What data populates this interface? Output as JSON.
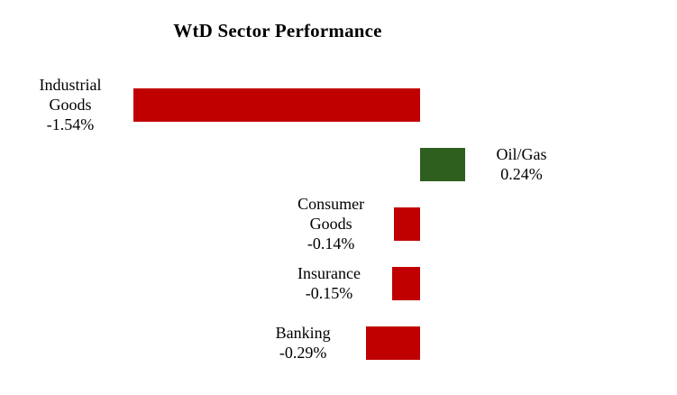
{
  "title": "WtD Sector Performance",
  "chart_data": {
    "type": "bar",
    "orientation": "horizontal",
    "title": "WtD Sector Performance",
    "xlabel": "",
    "ylabel": "",
    "value_format": "percent",
    "xlim": [
      -1.8,
      0.6
    ],
    "legend": false,
    "gridlines": false,
    "axes_visible": false,
    "categories": [
      "Industrial Goods",
      "Oil/Gas",
      "Consumer Goods",
      "Insurance",
      "Banking"
    ],
    "values": [
      -1.54,
      0.24,
      -0.14,
      -0.15,
      -0.29
    ],
    "colors": {
      "negative": "#c00000",
      "positive": "#2f5f1f"
    },
    "points": [
      {
        "category": "Industrial Goods",
        "name_lines": [
          "Industrial",
          "Goods"
        ],
        "value": -1.54,
        "value_label": "-1.54%",
        "color": "#c00000"
      },
      {
        "category": "Oil/Gas",
        "name_lines": [
          "Oil/Gas"
        ],
        "value": 0.24,
        "value_label": "0.24%",
        "color": "#2f5f1f"
      },
      {
        "category": "Consumer Goods",
        "name_lines": [
          "Consumer",
          "Goods"
        ],
        "value": -0.14,
        "value_label": "-0.14%",
        "color": "#c00000"
      },
      {
        "category": "Insurance",
        "name_lines": [
          "Insurance"
        ],
        "value": -0.15,
        "value_label": "-0.15%",
        "color": "#c00000"
      },
      {
        "category": "Banking",
        "name_lines": [
          "Banking"
        ],
        "value": -0.29,
        "value_label": "-0.29%",
        "color": "#c00000"
      }
    ]
  }
}
